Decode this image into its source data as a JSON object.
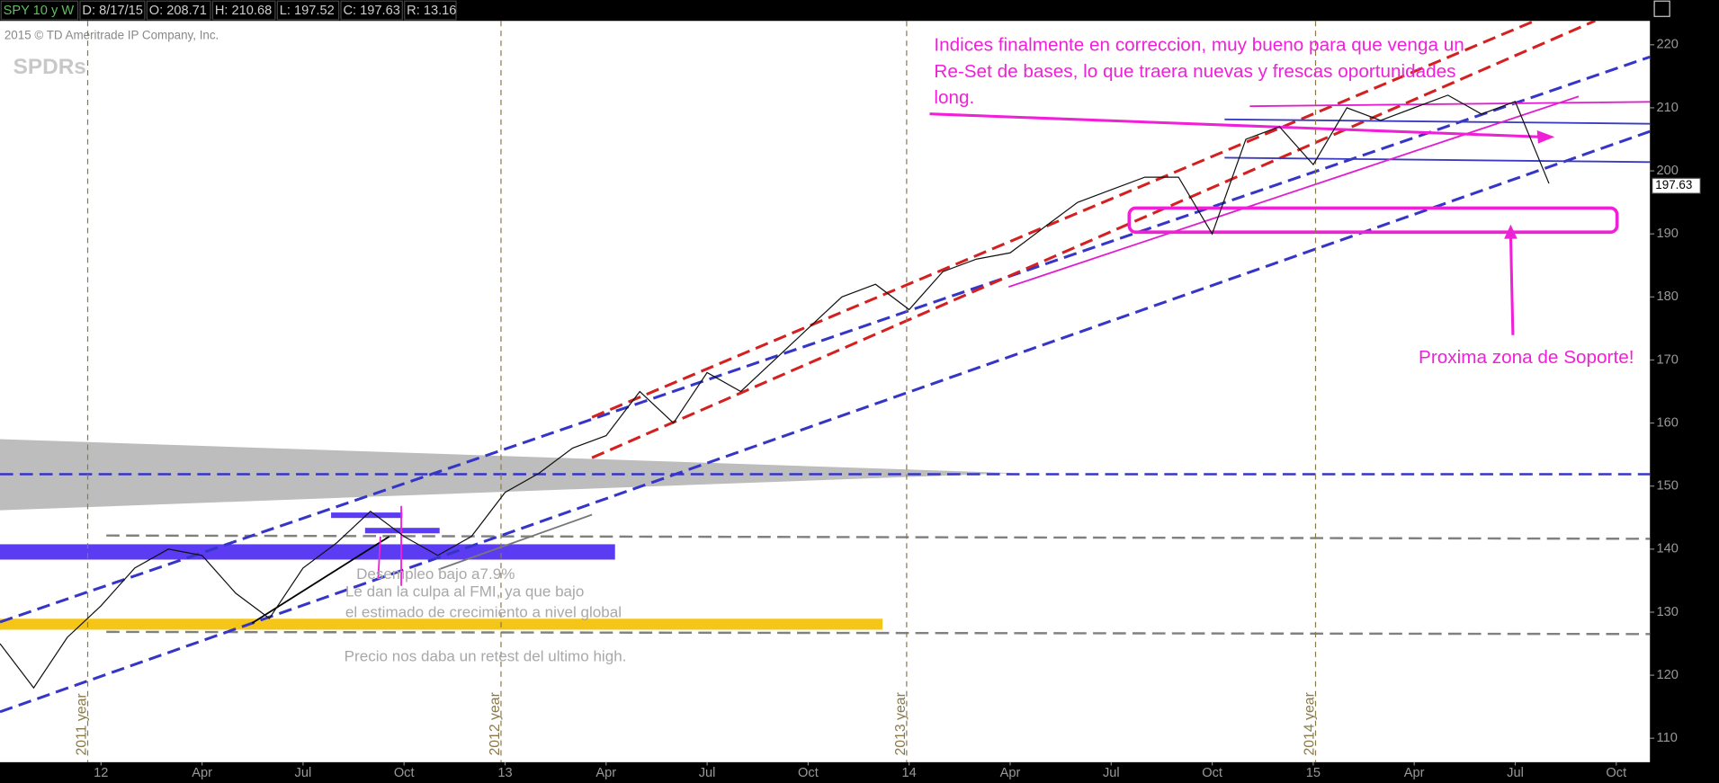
{
  "chart_data": {
    "type": "line",
    "header": [
      "SPY 10 y W",
      "D: 8/17/15",
      "O: 208.71",
      "H: 210.68",
      "L: 197.52",
      "C: 197.63",
      "R: 13.16"
    ],
    "copyright": "2015 © TD Ameritrade IP Company, Inc.",
    "logo": "SPDRs",
    "color": "#111111",
    "x": [
      "2011-10",
      "2011-11",
      "2011-12",
      "2012-01",
      "2012-02",
      "2012-03",
      "2012-04",
      "2012-05",
      "2012-06",
      "2012-07",
      "2012-08",
      "2012-09",
      "2012-10",
      "2012-11",
      "2012-12",
      "2013-01",
      "2013-02",
      "2013-03",
      "2013-04",
      "2013-05",
      "2013-06",
      "2013-07",
      "2013-08",
      "2013-09",
      "2013-10",
      "2013-11",
      "2013-12",
      "2014-01",
      "2014-02",
      "2014-03",
      "2014-04",
      "2014-05",
      "2014-06",
      "2014-07",
      "2014-08",
      "2014-09",
      "2014-10",
      "2014-11",
      "2014-12",
      "2015-01",
      "2015-02",
      "2015-03",
      "2015-04",
      "2015-05",
      "2015-06",
      "2015-07",
      "2015-08"
    ],
    "values": [
      125,
      118,
      126,
      131,
      137,
      140,
      139,
      133,
      129,
      137,
      141,
      146,
      142,
      139,
      142,
      149,
      152,
      156,
      158,
      165,
      160,
      168,
      165,
      170,
      175,
      180,
      182,
      178,
      184,
      186,
      187,
      191,
      195,
      197,
      199,
      199,
      190,
      205,
      207,
      201,
      210,
      208,
      210,
      212,
      209,
      211,
      198
    ],
    "last_price": 197.63,
    "xlim": [
      "2011-10",
      "2015-11"
    ],
    "xticks": [
      {
        "value": "2012-01",
        "label": "12"
      },
      {
        "value": "2012-04",
        "label": "Apr"
      },
      {
        "value": "2012-07",
        "label": "Jul"
      },
      {
        "value": "2012-10",
        "label": "Oct"
      },
      {
        "value": "2013-01",
        "label": "13"
      },
      {
        "value": "2013-04",
        "label": "Apr"
      },
      {
        "value": "2013-07",
        "label": "Jul"
      },
      {
        "value": "2013-10",
        "label": "Oct"
      },
      {
        "value": "2014-01",
        "label": "14"
      },
      {
        "value": "2014-04",
        "label": "Apr"
      },
      {
        "value": "2014-07",
        "label": "Jul"
      },
      {
        "value": "2014-10",
        "label": "Oct"
      },
      {
        "value": "2015-01",
        "label": "15"
      },
      {
        "value": "2015-04",
        "label": "Apr"
      },
      {
        "value": "2015-07",
        "label": "Jul"
      },
      {
        "value": "2015-10",
        "label": "Oct"
      }
    ],
    "ylim": [
      106.2,
      223.8
    ],
    "yticks": [
      110,
      120,
      130,
      140,
      150,
      160,
      170,
      180,
      190,
      200,
      210,
      220
    ],
    "year_labels": [
      "2011 year",
      "2012 year",
      "2013 year",
      "2014 year"
    ],
    "annotation_main": [
      "Indices finalmente en correccion, muy bueno para que venga un",
      "Re-Set de bases, lo que traera nuevas y frescas oportunidades",
      "long."
    ],
    "annotation_support": "Proxima zona de Soporte!",
    "annotation_notes": [
      "Desempleo bajo a7.9%",
      "Le dan la culpa al FMI, ya que bajo",
      "el estimado de crecimiento a nivel global",
      "Precio nos daba un retest del ultimo high."
    ]
  }
}
